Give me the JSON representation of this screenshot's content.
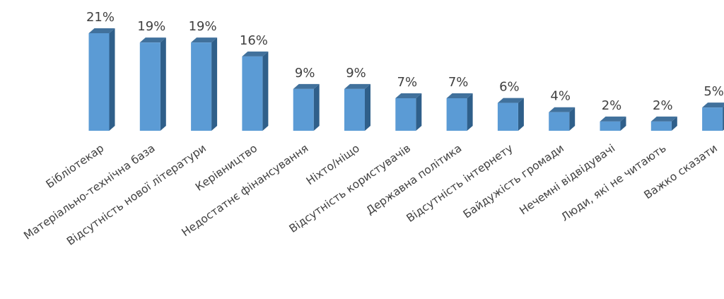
{
  "chart_data": {
    "type": "bar",
    "title": "",
    "xlabel": "",
    "ylabel": "",
    "ylim": [
      0,
      21
    ],
    "grid": false,
    "legend": "none",
    "style": "3d-column",
    "colors": {
      "bar_front": "#5b9bd5",
      "bar_side": "#2f5f8a",
      "bar_top": "#41719c",
      "text": "#404040"
    },
    "categories": [
      "Бібліотекар",
      "Матеріально-технічна база",
      "Відсутність нової літератури",
      "Керівництво",
      "Недостатнє фінансування",
      "Ніхто/ніщо",
      "Відсутність користувачів",
      "Державна політика",
      "Відсутність інтернету",
      "Байдужість громади",
      "Нечемні відвідувачі",
      "Люди, які не читають",
      "Важко сказати"
    ],
    "values": [
      21,
      19,
      19,
      16,
      9,
      9,
      7,
      7,
      6,
      4,
      2,
      2,
      5
    ],
    "data_labels": [
      "21%",
      "19%",
      "19%",
      "16%",
      "9%",
      "9%",
      "7%",
      "7%",
      "6%",
      "4%",
      "2%",
      "2%",
      "5%"
    ]
  }
}
